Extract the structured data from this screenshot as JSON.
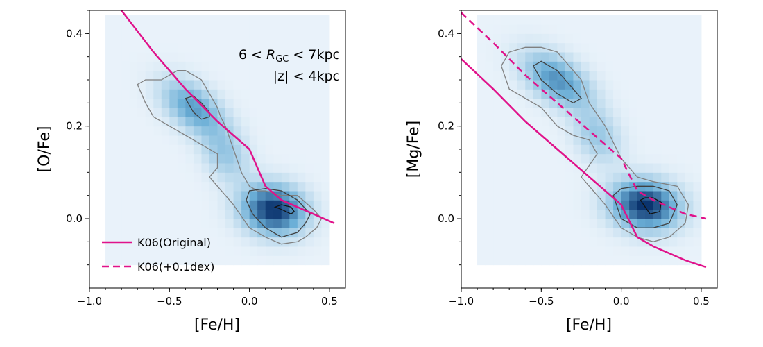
{
  "colors": {
    "model": "#e0128a",
    "contour": "#555555",
    "heat_low": "#f4f8fd",
    "heat_high": "#08306b",
    "axis": "#000000"
  },
  "chart_data": [
    {
      "type": "heatmap",
      "panel": "left",
      "xlabel": "[Fe/H]",
      "ylabel": "[O/Fe]",
      "xlim": [
        -1.0,
        0.6
      ],
      "ylim": [
        -0.15,
        0.45
      ],
      "xticks": [
        -1.0,
        -0.5,
        0.0,
        0.5
      ],
      "xtick_labels": [
        "−1.0",
        "−0.5",
        "0.0",
        "0.5"
      ],
      "yticks": [
        0.0,
        0.2,
        0.4
      ],
      "ytick_labels": [
        "0.0",
        "0.2",
        "0.4"
      ],
      "annotation_line1": "6 < R_GC < 7kpc",
      "annotation_line2": "|z| < 4kpc",
      "density_components": [
        {
          "cx": -0.35,
          "cy": 0.24,
          "sx": 0.13,
          "sy": 0.04,
          "rho": -0.5,
          "amp": 0.55
        },
        {
          "cx": -0.15,
          "cy": 0.14,
          "sx": 0.1,
          "sy": 0.04,
          "rho": -0.3,
          "amp": 0.3
        },
        {
          "cx": 0.15,
          "cy": 0.02,
          "sx": 0.13,
          "sy": 0.035,
          "rho": -0.1,
          "amp": 1.0
        }
      ],
      "series": [
        {
          "name": "K06(Original)",
          "style": "solid",
          "x": [
            -0.8,
            -0.6,
            -0.4,
            -0.2,
            -0.1,
            0.0,
            0.05,
            0.1,
            0.2,
            0.3,
            0.4,
            0.53
          ],
          "y": [
            0.45,
            0.36,
            0.28,
            0.21,
            0.18,
            0.15,
            0.11,
            0.07,
            0.04,
            0.025,
            0.01,
            -0.01
          ]
        }
      ],
      "contours": [
        {
          "level": "outer",
          "x": [
            -0.7,
            -0.65,
            -0.55,
            -0.5,
            -0.45,
            -0.4,
            -0.35,
            -0.3,
            -0.25,
            -0.2,
            -0.18,
            -0.15,
            -0.1,
            -0.05,
            0.0,
            0.05,
            0.1,
            0.2,
            0.3,
            0.4,
            0.45,
            0.42,
            0.35,
            0.3,
            0.2,
            0.1,
            0.0,
            -0.1,
            -0.2,
            -0.25,
            -0.2,
            -0.2,
            -0.25,
            -0.3,
            -0.4,
            -0.5,
            -0.6,
            -0.65,
            -0.7
          ],
          "y": [
            0.29,
            0.3,
            0.3,
            0.31,
            0.32,
            0.32,
            0.31,
            0.3,
            0.27,
            0.24,
            0.22,
            0.2,
            0.15,
            0.1,
            0.07,
            0.06,
            0.06,
            0.05,
            0.05,
            0.02,
            0.0,
            -0.02,
            -0.04,
            -0.05,
            -0.055,
            -0.04,
            -0.02,
            0.03,
            0.07,
            0.09,
            0.11,
            0.14,
            0.15,
            0.16,
            0.18,
            0.2,
            0.22,
            0.25,
            0.29
          ]
        },
        {
          "level": "middle",
          "x": [
            -0.02,
            0.0,
            0.1,
            0.2,
            0.3,
            0.38,
            0.35,
            0.3,
            0.2,
            0.1,
            0.02,
            -0.02
          ],
          "y": [
            0.04,
            0.06,
            0.065,
            0.06,
            0.04,
            0.01,
            -0.01,
            -0.03,
            -0.04,
            -0.02,
            0.01,
            0.04
          ]
        },
        {
          "level": "middle",
          "x": [
            -0.4,
            -0.35,
            -0.3,
            -0.25,
            -0.25,
            -0.3,
            -0.35,
            -0.4
          ],
          "y": [
            0.26,
            0.265,
            0.25,
            0.23,
            0.22,
            0.215,
            0.23,
            0.26
          ]
        },
        {
          "level": "inner",
          "x": [
            0.16,
            0.2,
            0.26,
            0.28,
            0.26,
            0.2,
            0.16
          ],
          "y": [
            0.025,
            0.03,
            0.025,
            0.015,
            0.01,
            0.02,
            0.025
          ]
        }
      ],
      "legend": {
        "location": "lower-left",
        "entries": [
          {
            "label": "K06(Original)",
            "style": "solid"
          },
          {
            "label": "K06(+0.1dex)",
            "style": "dashed"
          }
        ]
      }
    },
    {
      "type": "heatmap",
      "panel": "right",
      "xlabel": "[Fe/H]",
      "ylabel": "[Mg/Fe]",
      "xlim": [
        -1.0,
        0.6
      ],
      "ylim": [
        -0.15,
        0.45
      ],
      "xticks": [
        -1.0,
        -0.5,
        0.0,
        0.5
      ],
      "xtick_labels": [
        "−1.0",
        "−0.5",
        "0.0",
        "0.5"
      ],
      "yticks": [
        0.0,
        0.2,
        0.4
      ],
      "ytick_labels": [
        "0.0",
        "0.2",
        "0.4"
      ],
      "density_components": [
        {
          "cx": -0.4,
          "cy": 0.3,
          "sx": 0.14,
          "sy": 0.04,
          "rho": -0.5,
          "amp": 0.6
        },
        {
          "cx": -0.15,
          "cy": 0.18,
          "sx": 0.1,
          "sy": 0.04,
          "rho": -0.3,
          "amp": 0.3
        },
        {
          "cx": 0.15,
          "cy": 0.03,
          "sx": 0.14,
          "sy": 0.035,
          "rho": -0.1,
          "amp": 1.0
        }
      ],
      "series": [
        {
          "name": "K06(Original)",
          "style": "solid",
          "x": [
            -1.0,
            -0.8,
            -0.6,
            -0.4,
            -0.2,
            0.0,
            0.1,
            0.2,
            0.3,
            0.4,
            0.53
          ],
          "y": [
            0.345,
            0.28,
            0.21,
            0.15,
            0.09,
            0.03,
            -0.04,
            -0.06,
            -0.075,
            -0.09,
            -0.105
          ]
        },
        {
          "name": "K06(+0.1dex)",
          "style": "dashed",
          "x": [
            -1.0,
            -0.8,
            -0.6,
            -0.4,
            -0.2,
            0.0,
            0.1,
            0.2,
            0.3,
            0.4,
            0.53
          ],
          "y": [
            0.445,
            0.38,
            0.31,
            0.25,
            0.19,
            0.13,
            0.06,
            0.04,
            0.025,
            0.01,
            0.0
          ]
        }
      ],
      "contours": [
        {
          "level": "outer",
          "x": [
            -0.75,
            -0.7,
            -0.6,
            -0.5,
            -0.4,
            -0.3,
            -0.25,
            -0.2,
            -0.1,
            0.0,
            0.1,
            0.2,
            0.35,
            0.42,
            0.4,
            0.3,
            0.2,
            0.1,
            0.0,
            -0.1,
            -0.2,
            -0.25,
            -0.15,
            -0.2,
            -0.3,
            -0.4,
            -0.5,
            -0.6,
            -0.7,
            -0.75
          ],
          "y": [
            0.33,
            0.36,
            0.37,
            0.37,
            0.36,
            0.32,
            0.3,
            0.25,
            0.2,
            0.13,
            0.09,
            0.08,
            0.07,
            0.03,
            -0.01,
            -0.04,
            -0.05,
            -0.04,
            -0.02,
            0.03,
            0.07,
            0.09,
            0.14,
            0.17,
            0.18,
            0.2,
            0.24,
            0.26,
            0.28,
            0.33
          ]
        },
        {
          "level": "middle",
          "x": [
            -0.05,
            0.0,
            0.1,
            0.2,
            0.3,
            0.35,
            0.3,
            0.2,
            0.1,
            0.0,
            -0.05
          ],
          "y": [
            0.05,
            0.065,
            0.07,
            0.07,
            0.06,
            0.03,
            -0.01,
            -0.02,
            -0.02,
            0.0,
            0.05
          ]
        },
        {
          "level": "middle",
          "x": [
            -0.55,
            -0.5,
            -0.4,
            -0.3,
            -0.25,
            -0.3,
            -0.4,
            -0.5,
            -0.55
          ],
          "y": [
            0.33,
            0.34,
            0.32,
            0.28,
            0.26,
            0.25,
            0.27,
            0.3,
            0.33
          ]
        },
        {
          "level": "inner",
          "x": [
            0.12,
            0.15,
            0.2,
            0.25,
            0.24,
            0.18,
            0.12
          ],
          "y": [
            0.04,
            0.045,
            0.045,
            0.035,
            0.015,
            0.01,
            0.04
          ]
        }
      ],
      "legend": null
    }
  ]
}
